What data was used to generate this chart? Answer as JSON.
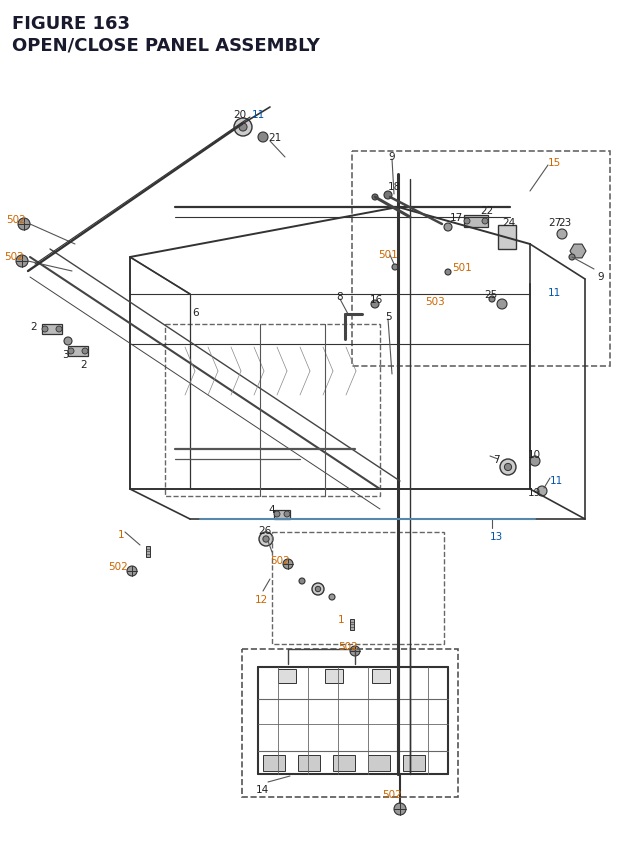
{
  "title_line1": "FIGURE 163",
  "title_line2": "OPEN/CLOSE PANEL ASSEMBLY",
  "title_color": "#1a1a2e",
  "bg_color": "#ffffff",
  "label_color_orange": "#cc6600",
  "label_color_blue": "#0055aa",
  "label_color_dark": "#222222"
}
